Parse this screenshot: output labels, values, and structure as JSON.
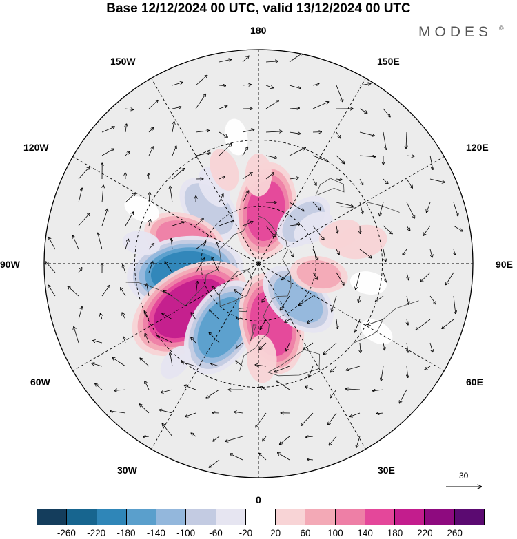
{
  "title": "Base 12/12/2024 00 UTC, valid 13/12/2024 00 UTC",
  "brand": "MODES",
  "brand_mark": "©",
  "longitude_labels": {
    "lon_180": "180",
    "lon_150e": "150E",
    "lon_120e": "120E",
    "lon_90e": "90E",
    "lon_60e": "60E",
    "lon_30e": "30E",
    "lon_0": "0",
    "lon_30w": "30W",
    "lon_60w": "60W",
    "lon_90w": "90W",
    "lon_120w": "120W",
    "lon_150w": "150W"
  },
  "reference_vector": {
    "value": "30"
  },
  "colorbar": {
    "colors": [
      "#143d5c",
      "#17658f",
      "#2f86b8",
      "#5a9fcc",
      "#93b7dc",
      "#c3cbe2",
      "#e6e5f1",
      "#ffffff",
      "#f8d4d6",
      "#f3a9b6",
      "#ee7fa6",
      "#e4479a",
      "#c31d8d",
      "#8e0a7f",
      "#5b0a71"
    ],
    "ticks": [
      "-260",
      "-220",
      "-180",
      "-140",
      "-100",
      "-60",
      "-20",
      "20",
      "60",
      "100",
      "140",
      "180",
      "220",
      "260"
    ]
  },
  "map": {
    "projection": "north-polar-stereographic",
    "background_color": "#ececec",
    "anomalies": [
      {
        "lon": 172,
        "lat": 62,
        "value": 150
      },
      {
        "lon": 180,
        "lat": 45,
        "value": 40
      },
      {
        "lon": 133,
        "lat": 58,
        "value": -80
      },
      {
        "lon": 123,
        "lat": 56,
        "value": -40
      },
      {
        "lon": -138,
        "lat": 52,
        "value": -100
      },
      {
        "lon": -150,
        "lat": 45,
        "value": -40
      },
      {
        "lon": -160,
        "lat": 40,
        "value": 40
      },
      {
        "lon": -108,
        "lat": 50,
        "value": 120
      },
      {
        "lon": -83,
        "lat": 52,
        "value": -190
      },
      {
        "lon": -57,
        "lat": 48,
        "value": 210
      },
      {
        "lon": -30,
        "lat": 52,
        "value": -160
      },
      {
        "lon": 12,
        "lat": 58,
        "value": 160
      },
      {
        "lon": 2,
        "lat": 42,
        "value": 50
      },
      {
        "lon": 48,
        "lat": 62,
        "value": -120
      },
      {
        "lon": 80,
        "lat": 58,
        "value": 70
      },
      {
        "lon": 102,
        "lat": 38,
        "value": 60
      },
      {
        "lon": 110,
        "lat": 46,
        "value": 40
      },
      {
        "lon": -100,
        "lat": 32,
        "value": -30
      },
      {
        "lon": -40,
        "lat": 28,
        "value": -30
      },
      {
        "lon": 80,
        "lat": 35,
        "value": -20
      },
      {
        "lon": 60,
        "lat": 25,
        "value": -15
      },
      {
        "lon": -170,
        "lat": 28,
        "value": -20
      },
      {
        "lon": -115,
        "lat": 28,
        "value": 20
      }
    ]
  }
}
